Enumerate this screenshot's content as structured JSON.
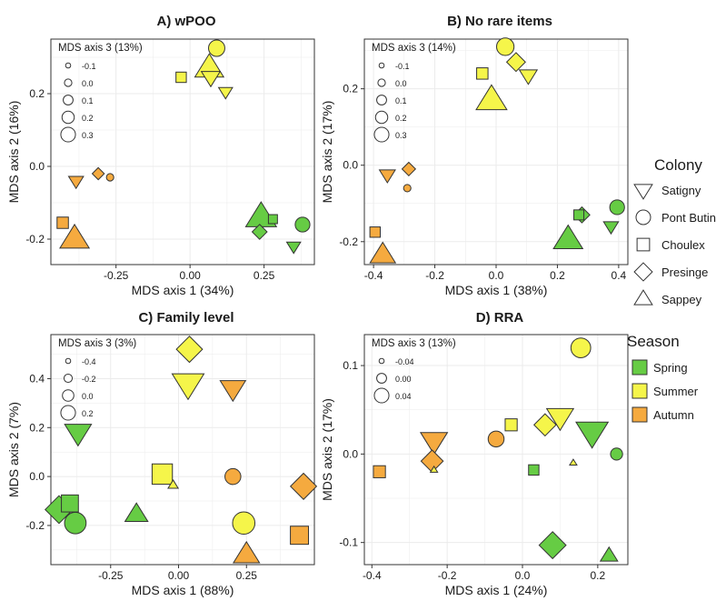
{
  "colors": {
    "Spring": "#66cc44",
    "Summer": "#f5f54a",
    "Autumn": "#f5aa3f",
    "grid": "#ebebeb",
    "stroke": "#333333"
  },
  "shapes": {
    "Satigny": "triangle-down",
    "Pont Butin": "circle",
    "Choulex": "square",
    "Presinge": "diamond",
    "Sappey": "triangle-up"
  },
  "legend": {
    "colony_title": "Colony",
    "colonies": [
      "Satigny",
      "Pont Butin",
      "Choulex",
      "Presinge",
      "Sappey"
    ],
    "season_title": "Season",
    "seasons": [
      "Spring",
      "Summer",
      "Autumn"
    ]
  },
  "chart_data": [
    {
      "type": "scatter",
      "title": "A) wPOO",
      "xlabel": "MDS axis 1 (34%)",
      "ylabel": "MDS axis 2 (16%)",
      "size_title": "MDS axis 3 (13%)",
      "size_values": [
        -0.1,
        0.0,
        0.1,
        0.2,
        0.3
      ],
      "size_labels": [
        "-0.1",
        "0.0",
        "0.1",
        "0.2",
        "0.3"
      ],
      "xlim": [
        -0.47,
        0.42
      ],
      "ylim": [
        -0.27,
        0.35
      ],
      "xticks": [
        -0.25,
        0.0,
        0.25
      ],
      "xtick_labels": [
        "-0.25",
        "0.00",
        "0.25"
      ],
      "yticks": [
        -0.2,
        0.0,
        0.2
      ],
      "ytick_labels": [
        "-0.2",
        "0.0",
        "0.2"
      ],
      "grid": true,
      "points": [
        {
          "x": 0.09,
          "y": 0.325,
          "z": 0.11,
          "colony": "Pont Butin",
          "season": "Summer"
        },
        {
          "x": 0.065,
          "y": 0.27,
          "z": 0.29,
          "colony": "Sappey",
          "season": "Summer"
        },
        {
          "x": 0.07,
          "y": 0.245,
          "z": 0.08,
          "colony": "Satigny",
          "season": "Summer"
        },
        {
          "x": -0.03,
          "y": 0.245,
          "z": 0.0,
          "colony": "Choulex",
          "season": "Summer"
        },
        {
          "x": 0.12,
          "y": 0.205,
          "z": -0.02,
          "colony": "Satigny",
          "season": "Summer"
        },
        {
          "x": -0.31,
          "y": -0.02,
          "z": -0.06,
          "colony": "Presinge",
          "season": "Autumn"
        },
        {
          "x": -0.27,
          "y": -0.03,
          "z": -0.12,
          "colony": "Pont Butin",
          "season": "Autumn"
        },
        {
          "x": -0.385,
          "y": -0.04,
          "z": 0.0,
          "colony": "Satigny",
          "season": "Autumn"
        },
        {
          "x": -0.43,
          "y": -0.155,
          "z": 0.03,
          "colony": "Choulex",
          "season": "Autumn"
        },
        {
          "x": -0.39,
          "y": -0.2,
          "z": 0.3,
          "colony": "Sappey",
          "season": "Autumn"
        },
        {
          "x": 0.24,
          "y": -0.14,
          "z": 0.33,
          "colony": "Sappey",
          "season": "Spring"
        },
        {
          "x": 0.28,
          "y": -0.145,
          "z": -0.04,
          "colony": "Choulex",
          "season": "Spring"
        },
        {
          "x": 0.38,
          "y": -0.16,
          "z": 0.07,
          "colony": "Pont Butin",
          "season": "Spring"
        },
        {
          "x": 0.235,
          "y": -0.18,
          "z": 0.0,
          "colony": "Presinge",
          "season": "Spring"
        },
        {
          "x": 0.35,
          "y": -0.22,
          "z": -0.02,
          "colony": "Satigny",
          "season": "Spring"
        }
      ]
    },
    {
      "type": "scatter",
      "title": "B) No rare items",
      "xlabel": "MDS axis 1 (38%)",
      "ylabel": "MDS axis 2 (17%)",
      "size_title": "MDS axis 3 (14%)",
      "size_values": [
        -0.1,
        0.0,
        0.1,
        0.2,
        0.3
      ],
      "size_labels": [
        "-0.1",
        "0.0",
        "0.1",
        "0.2",
        "0.3"
      ],
      "xlim": [
        -0.43,
        0.43
      ],
      "ylim": [
        -0.26,
        0.33
      ],
      "xticks": [
        -0.4,
        -0.2,
        0.0,
        0.2,
        0.4
      ],
      "xtick_labels": [
        "-0.4",
        "-0.2",
        "0.0",
        "0.2",
        "0.4"
      ],
      "yticks": [
        -0.2,
        0.0,
        0.2
      ],
      "ytick_labels": [
        "-0.2",
        "0.0",
        "0.2"
      ],
      "grid": true,
      "points": [
        {
          "x": 0.03,
          "y": 0.31,
          "z": 0.14,
          "colony": "Pont Butin",
          "season": "Summer"
        },
        {
          "x": 0.065,
          "y": 0.27,
          "z": 0.08,
          "colony": "Presinge",
          "season": "Summer"
        },
        {
          "x": -0.045,
          "y": 0.24,
          "z": 0.03,
          "colony": "Choulex",
          "season": "Summer"
        },
        {
          "x": 0.105,
          "y": 0.235,
          "z": 0.06,
          "colony": "Satigny",
          "season": "Summer"
        },
        {
          "x": -0.015,
          "y": 0.17,
          "z": 0.33,
          "colony": "Sappey",
          "season": "Summer"
        },
        {
          "x": -0.355,
          "y": -0.025,
          "z": 0.02,
          "colony": "Satigny",
          "season": "Autumn"
        },
        {
          "x": -0.285,
          "y": -0.01,
          "z": -0.03,
          "colony": "Presinge",
          "season": "Autumn"
        },
        {
          "x": -0.29,
          "y": -0.06,
          "z": -0.12,
          "colony": "Pont Butin",
          "season": "Autumn"
        },
        {
          "x": -0.395,
          "y": -0.175,
          "z": 0.0,
          "colony": "Choulex",
          "season": "Autumn"
        },
        {
          "x": -0.37,
          "y": -0.235,
          "z": 0.22,
          "colony": "Sappey",
          "season": "Autumn"
        },
        {
          "x": 0.395,
          "y": -0.11,
          "z": 0.07,
          "colony": "Pont Butin",
          "season": "Spring"
        },
        {
          "x": 0.28,
          "y": -0.13,
          "z": 0.02,
          "colony": "Presinge",
          "season": "Spring"
        },
        {
          "x": 0.27,
          "y": -0.13,
          "z": -0.01,
          "colony": "Choulex",
          "season": "Spring"
        },
        {
          "x": 0.375,
          "y": -0.16,
          "z": 0.0,
          "colony": "Satigny",
          "season": "Spring"
        },
        {
          "x": 0.235,
          "y": -0.195,
          "z": 0.3,
          "colony": "Sappey",
          "season": "Spring"
        }
      ]
    },
    {
      "type": "scatter",
      "title": "C) Family level",
      "xlabel": "MDS axis 1 (88%)",
      "ylabel": "MDS axis 2 (7%)",
      "size_title": "MDS axis 3 (3%)",
      "size_values": [
        -0.4,
        -0.2,
        0.0,
        0.2
      ],
      "size_labels": [
        "-0.4",
        "-0.2",
        "0.0",
        "0.2"
      ],
      "xlim": [
        -0.47,
        0.5
      ],
      "ylim": [
        -0.36,
        0.58
      ],
      "xticks": [
        -0.25,
        0.0,
        0.25
      ],
      "xtick_labels": [
        "-0.25",
        "0.00",
        "0.25"
      ],
      "yticks": [
        -0.2,
        0.0,
        0.2,
        0.4
      ],
      "ytick_labels": [
        "-0.2",
        "0.0",
        "0.2",
        "0.4"
      ],
      "grid": true,
      "points": [
        {
          "x": 0.04,
          "y": 0.52,
          "z": 0.1,
          "colony": "Presinge",
          "season": "Summer"
        },
        {
          "x": 0.035,
          "y": 0.38,
          "z": 0.28,
          "colony": "Satigny",
          "season": "Summer"
        },
        {
          "x": 0.2,
          "y": 0.36,
          "z": 0.08,
          "colony": "Satigny",
          "season": "Autumn"
        },
        {
          "x": -0.37,
          "y": 0.18,
          "z": 0.12,
          "colony": "Satigny",
          "season": "Spring"
        },
        {
          "x": -0.06,
          "y": 0.01,
          "z": 0.2,
          "colony": "Choulex",
          "season": "Summer"
        },
        {
          "x": -0.02,
          "y": -0.035,
          "z": -0.4,
          "colony": "Sappey",
          "season": "Summer"
        },
        {
          "x": 0.2,
          "y": 0.0,
          "z": -0.1,
          "colony": "Pont Butin",
          "season": "Autumn"
        },
        {
          "x": 0.46,
          "y": -0.04,
          "z": 0.1,
          "colony": "Presinge",
          "season": "Autumn"
        },
        {
          "x": -0.4,
          "y": -0.11,
          "z": 0.05,
          "colony": "Choulex",
          "season": "Spring"
        },
        {
          "x": -0.44,
          "y": -0.135,
          "z": 0.15,
          "colony": "Presinge",
          "season": "Spring"
        },
        {
          "x": -0.38,
          "y": -0.19,
          "z": 0.12,
          "colony": "Pont Butin",
          "season": "Spring"
        },
        {
          "x": -0.155,
          "y": -0.155,
          "z": 0.0,
          "colony": "Sappey",
          "season": "Spring"
        },
        {
          "x": 0.24,
          "y": -0.19,
          "z": 0.15,
          "colony": "Pont Butin",
          "season": "Summer"
        },
        {
          "x": 0.445,
          "y": -0.24,
          "z": 0.1,
          "colony": "Choulex",
          "season": "Autumn"
        },
        {
          "x": 0.25,
          "y": -0.32,
          "z": 0.1,
          "colony": "Sappey",
          "season": "Autumn"
        }
      ]
    },
    {
      "type": "scatter",
      "title": "D) RRA",
      "xlabel": "MDS axis 1 (24%)",
      "ylabel": "MDS axis 2 (17%)",
      "size_title": "MDS axis 3 (13%)",
      "size_values": [
        -0.04,
        0.0,
        0.04
      ],
      "size_labels": [
        "-0.04",
        "0.00",
        "0.04"
      ],
      "xlim": [
        -0.42,
        0.28
      ],
      "ylim": [
        -0.125,
        0.135
      ],
      "xticks": [
        -0.4,
        -0.2,
        0.0,
        0.2
      ],
      "xtick_labels": [
        "-0.4",
        "-0.2",
        "0.0",
        "0.2"
      ],
      "yticks": [
        -0.1,
        0.0,
        0.1
      ],
      "ytick_labels": [
        "-0.1",
        "0.0",
        "0.1"
      ],
      "grid": true,
      "points": [
        {
          "x": 0.155,
          "y": 0.12,
          "z": 0.02,
          "colony": "Pont Butin",
          "season": "Summer"
        },
        {
          "x": 0.1,
          "y": 0.042,
          "z": 0.03,
          "colony": "Satigny",
          "season": "Summer"
        },
        {
          "x": 0.185,
          "y": 0.025,
          "z": 0.06,
          "colony": "Satigny",
          "season": "Spring"
        },
        {
          "x": -0.235,
          "y": 0.015,
          "z": 0.03,
          "colony": "Satigny",
          "season": "Autumn"
        },
        {
          "x": -0.07,
          "y": 0.017,
          "z": 0.0,
          "colony": "Pont Butin",
          "season": "Autumn"
        },
        {
          "x": -0.03,
          "y": 0.033,
          "z": -0.01,
          "colony": "Choulex",
          "season": "Summer"
        },
        {
          "x": 0.06,
          "y": 0.033,
          "z": 0.01,
          "colony": "Presinge",
          "season": "Summer"
        },
        {
          "x": 0.25,
          "y": 0.0,
          "z": -0.02,
          "colony": "Pont Butin",
          "season": "Spring"
        },
        {
          "x": -0.24,
          "y": -0.008,
          "z": 0.01,
          "colony": "Presinge",
          "season": "Autumn"
        },
        {
          "x": -0.235,
          "y": -0.018,
          "z": -0.06,
          "colony": "Sappey",
          "season": "Summer"
        },
        {
          "x": -0.38,
          "y": -0.02,
          "z": -0.01,
          "colony": "Choulex",
          "season": "Autumn"
        },
        {
          "x": 0.03,
          "y": -0.018,
          "z": -0.02,
          "colony": "Choulex",
          "season": "Spring"
        },
        {
          "x": 0.135,
          "y": -0.01,
          "z": -0.08,
          "colony": "Sappey",
          "season": "Summer"
        },
        {
          "x": 0.08,
          "y": -0.103,
          "z": 0.03,
          "colony": "Presinge",
          "season": "Spring"
        },
        {
          "x": 0.23,
          "y": -0.115,
          "z": -0.01,
          "colony": "Sappey",
          "season": "Spring"
        }
      ]
    }
  ]
}
